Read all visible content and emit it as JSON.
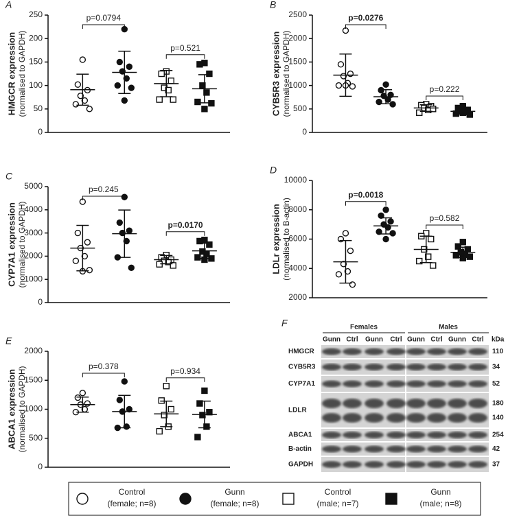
{
  "chart_data": [
    {
      "type": "dotplot",
      "label": "A",
      "ylabel": "HMGCR expression",
      "ylabel_sub": "(normalised to GAPDH)",
      "ylim": [
        0,
        250
      ],
      "yticks": [
        0,
        50,
        100,
        150,
        200,
        250
      ],
      "groups": [
        {
          "values": [
            155,
            102,
            90,
            78,
            68,
            60,
            50
          ],
          "mean": 91,
          "sd": 33
        },
        {
          "values": [
            220,
            150,
            140,
            130,
            115,
            100,
            95,
            68
          ],
          "mean": 128,
          "sd": 45
        },
        {
          "values": [
            130,
            125,
            110,
            95,
            90,
            70,
            70
          ],
          "mean": 104,
          "sd": 28
        },
        {
          "values": [
            148,
            145,
            125,
            100,
            85,
            65,
            62,
            50
          ],
          "mean": 93,
          "sd": 30
        }
      ],
      "annotations": [
        {
          "text": "p=0.0794",
          "groups": [
            0,
            1
          ],
          "bold": false
        },
        {
          "text": "p=0.521",
          "groups": [
            2,
            3
          ],
          "bold": false
        }
      ]
    },
    {
      "type": "dotplot",
      "label": "B",
      "ylabel": "CYB5R3 expression",
      "ylabel_sub": "(normalised to GAPDH)",
      "ylim": [
        0,
        2500
      ],
      "yticks": [
        0,
        500,
        1000,
        1500,
        2000,
        2500
      ],
      "groups": [
        {
          "values": [
            2170,
            1450,
            1250,
            1200,
            1050,
            1000,
            980,
            1000
          ],
          "mean": 1220,
          "sd": 450
        },
        {
          "values": [
            1020,
            900,
            800,
            780,
            700,
            650,
            600
          ],
          "mean": 760,
          "sd": 150
        },
        {
          "values": [
            600,
            580,
            560,
            520,
            480,
            420,
            500
          ],
          "mean": 520,
          "sd": 70
        },
        {
          "values": [
            560,
            520,
            480,
            460,
            430,
            400,
            380,
            420
          ],
          "mean": 450,
          "sd": 60
        }
      ],
      "annotations": [
        {
          "text": "p=0.0276",
          "groups": [
            0,
            1
          ],
          "bold": true
        },
        {
          "text": "p=0.222",
          "groups": [
            2,
            3
          ],
          "bold": false
        }
      ]
    },
    {
      "type": "dotplot",
      "label": "C",
      "ylabel": "CYP7A1 expression",
      "ylabel_sub": "(normalised to GAPDH)",
      "ylim": [
        0,
        5000
      ],
      "yticks": [
        0,
        1000,
        2000,
        3000,
        4000,
        5000
      ],
      "groups": [
        {
          "values": [
            4350,
            3000,
            2600,
            2350,
            2000,
            1800,
            1400,
            1350
          ],
          "mean": 2350,
          "sd": 980
        },
        {
          "values": [
            4550,
            3450,
            3100,
            3000,
            2650,
            1950,
            1500
          ],
          "mean": 2970,
          "sd": 1020
        },
        {
          "values": [
            2050,
            1950,
            1850,
            1800,
            1750,
            1650,
            1600
          ],
          "mean": 1850,
          "sd": 180
        },
        {
          "values": [
            2700,
            2650,
            2500,
            2200,
            2100,
            1950,
            1900,
            1850
          ],
          "mean": 2230,
          "sd": 330
        }
      ],
      "annotations": [
        {
          "text": "p=0.245",
          "groups": [
            0,
            1
          ],
          "bold": false
        },
        {
          "text": "p=0.0170",
          "groups": [
            2,
            3
          ],
          "bold": true
        }
      ]
    },
    {
      "type": "dotplot",
      "label": "D",
      "ylabel": "LDLr expression",
      "ylabel_sub": "(normalised to B-actin)",
      "ylim": [
        2000,
        10000
      ],
      "yticks": [
        2000,
        4000,
        6000,
        8000,
        10000
      ],
      "groups": [
        {
          "values": [
            6400,
            6000,
            5200,
            4300,
            3800,
            3600,
            2900
          ],
          "mean": 4450,
          "sd": 1450
        },
        {
          "values": [
            8000,
            7600,
            7200,
            7000,
            6800,
            6500,
            6400,
            6000
          ],
          "mean": 6900,
          "sd": 550
        },
        {
          "values": [
            6400,
            6200,
            6000,
            5300,
            4800,
            4500,
            4200
          ],
          "mean": 5300,
          "sd": 900
        },
        {
          "values": [
            5800,
            5500,
            5300,
            5100,
            5000,
            4900,
            4800,
            4700
          ],
          "mean": 5100,
          "sd": 350
        }
      ],
      "annotations": [
        {
          "text": "p=0.0018",
          "groups": [
            0,
            1
          ],
          "bold": true
        },
        {
          "text": "p=0.582",
          "groups": [
            2,
            3
          ],
          "bold": false
        }
      ]
    },
    {
      "type": "dotplot",
      "label": "E",
      "ylabel": "ABCA1 expression",
      "ylabel_sub": "(normalised to GAPDH)",
      "ylim": [
        0,
        2000
      ],
      "yticks": [
        0,
        500,
        1000,
        1500,
        2000
      ],
      "groups": [
        {
          "values": [
            1280,
            1200,
            1100,
            1080,
            1000,
            950
          ],
          "mean": 1080,
          "sd": 130
        },
        {
          "values": [
            1480,
            1160,
            1000,
            960,
            700,
            680
          ],
          "mean": 960,
          "sd": 280
        },
        {
          "values": [
            1400,
            1150,
            1000,
            900,
            700,
            620
          ],
          "mean": 920,
          "sd": 220
        },
        {
          "values": [
            1320,
            1100,
            950,
            900,
            700,
            520
          ],
          "mean": 910,
          "sd": 230
        }
      ],
      "annotations": [
        {
          "text": "p=0.378",
          "groups": [
            0,
            1
          ],
          "bold": false
        },
        {
          "text": "p=0.934",
          "groups": [
            2,
            3
          ],
          "bold": false
        }
      ]
    }
  ],
  "blot": {
    "label": "F",
    "sexes": [
      "Females",
      "Males"
    ],
    "lanes": [
      "Gunn",
      "Ctrl",
      "Gunn",
      "Ctrl",
      "Gunn",
      "Ctrl",
      "Gunn",
      "Ctrl"
    ],
    "unit": "kDa",
    "rows": [
      {
        "name": "HMGCR",
        "kda": [
          110
        ]
      },
      {
        "name": "CYB5R3",
        "kda": [
          34
        ]
      },
      {
        "name": "CYP7A1",
        "kda": [
          52
        ]
      },
      {
        "name": "LDLR",
        "kda": [
          180,
          140
        ]
      },
      {
        "name": "ABCA1",
        "kda": [
          254
        ]
      },
      {
        "name": "B-actin",
        "kda": [
          42
        ]
      },
      {
        "name": "GAPDH",
        "kda": [
          37
        ]
      }
    ]
  },
  "legend": [
    {
      "name": "Control",
      "detail": "(female; n=8)",
      "marker": "circle",
      "filled": false
    },
    {
      "name": "Gunn",
      "detail": "(female; n=8)",
      "marker": "circle",
      "filled": true
    },
    {
      "name": "Control",
      "detail": "(male; n=7)",
      "marker": "square",
      "filled": false
    },
    {
      "name": "Gunn",
      "detail": "(male; n=8)",
      "marker": "square",
      "filled": true
    }
  ]
}
